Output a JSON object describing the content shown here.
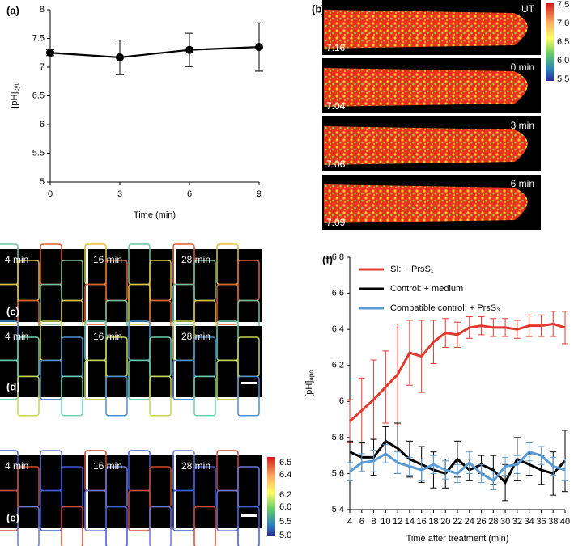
{
  "chart_data": [
    {
      "type": "line",
      "panel_label": "(a)",
      "xlabel": "Time (min)",
      "ylabel": {
        "text": "[pH]",
        "sub": "cyt"
      },
      "x": [
        0,
        3,
        6,
        9
      ],
      "series": [
        {
          "color": "#000000",
          "values": [
            7.25,
            7.17,
            7.3,
            7.35
          ],
          "errors": [
            0.05,
            0.3,
            0.29,
            0.42
          ]
        }
      ],
      "xlim": [
        0,
        9
      ],
      "xticks": [
        0,
        3,
        6,
        9
      ],
      "ylim": [
        5,
        8
      ],
      "yticks": [
        5,
        5.5,
        6,
        6.5,
        7,
        7.5,
        8
      ]
    },
    {
      "type": "line",
      "panel_label": "(f)",
      "xlabel": "Time after treatment (min)",
      "ylabel": {
        "text": "[pH]",
        "sub": "apo"
      },
      "x": [
        4,
        6,
        8,
        10,
        12,
        14,
        16,
        18,
        20,
        22,
        24,
        26,
        28,
        30,
        32,
        34,
        36,
        38,
        40
      ],
      "series": [
        {
          "name": "SI: + PrsS₁",
          "color": "#e03a2f",
          "values": [
            5.89,
            5.95,
            6.01,
            6.08,
            6.15,
            6.27,
            6.25,
            6.33,
            6.38,
            6.37,
            6.41,
            6.42,
            6.41,
            6.41,
            6.4,
            6.42,
            6.42,
            6.43,
            6.41
          ],
          "errors": [
            0.12,
            0.18,
            0.22,
            0.2,
            0.28,
            0.18,
            0.2,
            0.12,
            0.08,
            0.07,
            0.06,
            0.05,
            0.05,
            0.05,
            0.05,
            0.06,
            0.06,
            0.07,
            0.09
          ]
        },
        {
          "name": "Control: + medium",
          "color": "#000000",
          "values": [
            5.72,
            5.69,
            5.69,
            5.78,
            5.74,
            5.68,
            5.65,
            5.62,
            5.6,
            5.68,
            5.62,
            5.65,
            5.62,
            5.55,
            5.68,
            5.65,
            5.62,
            5.6,
            5.67
          ],
          "errors": [
            0.06,
            0.08,
            0.1,
            0.08,
            0.14,
            0.1,
            0.1,
            0.1,
            0.08,
            0.1,
            0.06,
            0.05,
            0.08,
            0.1,
            0.12,
            0.06,
            0.08,
            0.12,
            0.17
          ]
        },
        {
          "name": "Compatible control: + PrsS₃",
          "color": "#5b9bd5",
          "values": [
            5.61,
            5.66,
            5.67,
            5.71,
            5.66,
            5.64,
            5.62,
            5.65,
            5.62,
            5.6,
            5.66,
            5.6,
            5.56,
            5.64,
            5.65,
            5.72,
            5.7,
            5.64,
            5.62
          ],
          "errors": [
            0.05,
            0.05,
            0.06,
            0.05,
            0.06,
            0.05,
            0.06,
            0.05,
            0.05,
            0.05,
            0.06,
            0.05,
            0.05,
            0.05,
            0.05,
            0.05,
            0.05,
            0.05,
            0.06
          ]
        }
      ],
      "xlim": [
        4,
        40
      ],
      "xticks": [
        4,
        6,
        8,
        10,
        12,
        14,
        16,
        18,
        20,
        22,
        24,
        26,
        28,
        30,
        32,
        34,
        36,
        38,
        40
      ],
      "ylim": [
        5.4,
        6.8
      ],
      "yticks": [
        5.4,
        5.6,
        5.8,
        6,
        6.2,
        6.4,
        6.6,
        6.8
      ]
    }
  ],
  "images": {
    "b": {
      "panel_label": "(b)",
      "frames": [
        {
          "time": "UT",
          "value": "7.16"
        },
        {
          "time": "0 min",
          "value": "7.04"
        },
        {
          "time": "3 min",
          "value": "7.06"
        },
        {
          "time": "6 min",
          "value": "7.09"
        }
      ],
      "colorbar": [
        "7.5",
        "7.0",
        "6.5",
        "6.0",
        "5.5"
      ]
    },
    "c": {
      "panel_label": "(c)",
      "frames": [
        "4 min",
        "16 min",
        "28 min"
      ]
    },
    "d": {
      "panel_label": "(d)",
      "frames": [
        "4 min",
        "16 min",
        "28 min"
      ]
    },
    "e": {
      "panel_label": "(e)",
      "frames": [
        "4 min",
        "16 min",
        "28 min"
      ],
      "colorbar": [
        "6.5",
        "6.4",
        "6.2",
        "6.0",
        "5.5",
        "5.0"
      ]
    }
  }
}
